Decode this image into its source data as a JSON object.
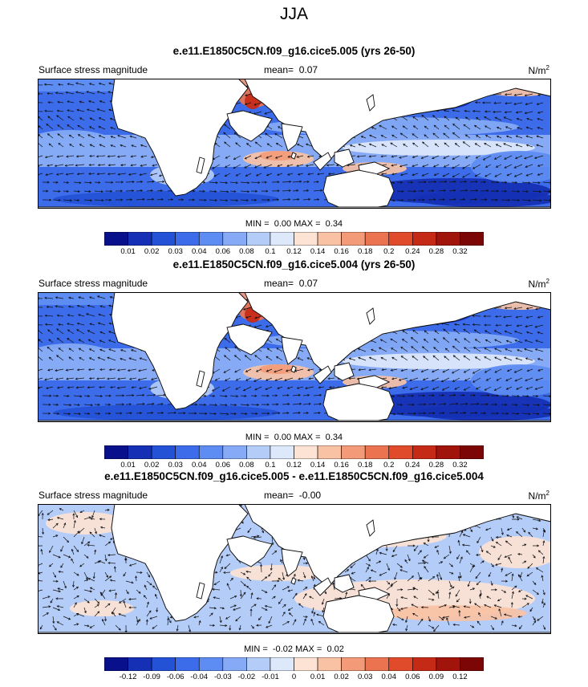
{
  "main_title": "JJA",
  "colors": {
    "land": "#ffffff",
    "coast": "#111111",
    "arrow": "#111111",
    "abs_palette": [
      "#08108c",
      "#1530b4",
      "#2452d6",
      "#3c6cea",
      "#5d8cf2",
      "#86aaf5",
      "#b4ccf8",
      "#dde8fb",
      "#fde3d4",
      "#f9c2a5",
      "#f39b78",
      "#eb7350",
      "#e04b2c",
      "#c52a17",
      "#a0140c",
      "#7c0606"
    ],
    "diff_palette": [
      "#08108c",
      "#1530b4",
      "#2452d6",
      "#3c6cea",
      "#5d8cf2",
      "#86aaf5",
      "#b4ccf8",
      "#dde8fb",
      "#fde3d4",
      "#f9c2a5",
      "#f39b78",
      "#eb7350",
      "#e04b2c",
      "#c52a17",
      "#a0140c",
      "#7c0606"
    ]
  },
  "chart_data": [
    {
      "type": "heatmap",
      "title": "e.e11.E1850C5CN.f09_g16.cice5.005 (yrs 26-50)",
      "left_label": "Surface stress magnitude",
      "mean_label": "mean=",
      "mean_value": "0.07",
      "units_base": "N/m",
      "units_exp": "2",
      "min_label": "MIN =",
      "min_value": "0.00",
      "max_label": "MAX =",
      "max_value": "0.34",
      "colorbar_ticks": [
        "0.01",
        "0.02",
        "0.03",
        "0.04",
        "0.06",
        "0.08",
        "0.1",
        "0.12",
        "0.14",
        "0.16",
        "0.18",
        "0.2",
        "0.24",
        "0.28",
        "0.32"
      ],
      "palette": "abs"
    },
    {
      "type": "heatmap",
      "title": "e.e11.E1850C5CN.f09_g16.cice5.004 (yrs 26-50)",
      "left_label": "Surface stress magnitude",
      "mean_label": "mean=",
      "mean_value": "0.07",
      "units_base": "N/m",
      "units_exp": "2",
      "min_label": "MIN =",
      "min_value": "0.00",
      "max_label": "MAX =",
      "max_value": "0.34",
      "colorbar_ticks": [
        "0.01",
        "0.02",
        "0.03",
        "0.04",
        "0.06",
        "0.08",
        "0.1",
        "0.12",
        "0.14",
        "0.16",
        "0.18",
        "0.2",
        "0.24",
        "0.28",
        "0.32"
      ],
      "palette": "abs"
    },
    {
      "type": "heatmap",
      "title": "e.e11.E1850C5CN.f09_g16.cice5.005 - e.e11.E1850C5CN.f09_g16.cice5.004",
      "left_label": "Surface stress magnitude",
      "mean_label": "mean=",
      "mean_value": "-0.00",
      "units_base": "N/m",
      "units_exp": "2",
      "min_label": "MIN =",
      "min_value": "-0.02",
      "max_label": "MAX =",
      "max_value": "0.02",
      "colorbar_ticks": [
        "-0.12",
        "-0.09",
        "-0.06",
        "-0.04",
        "-0.03",
        "-0.02",
        "-0.01",
        "0",
        "0.01",
        "0.02",
        "0.03",
        "0.04",
        "0.06",
        "0.09",
        "0.12"
      ],
      "palette": "diff"
    }
  ]
}
